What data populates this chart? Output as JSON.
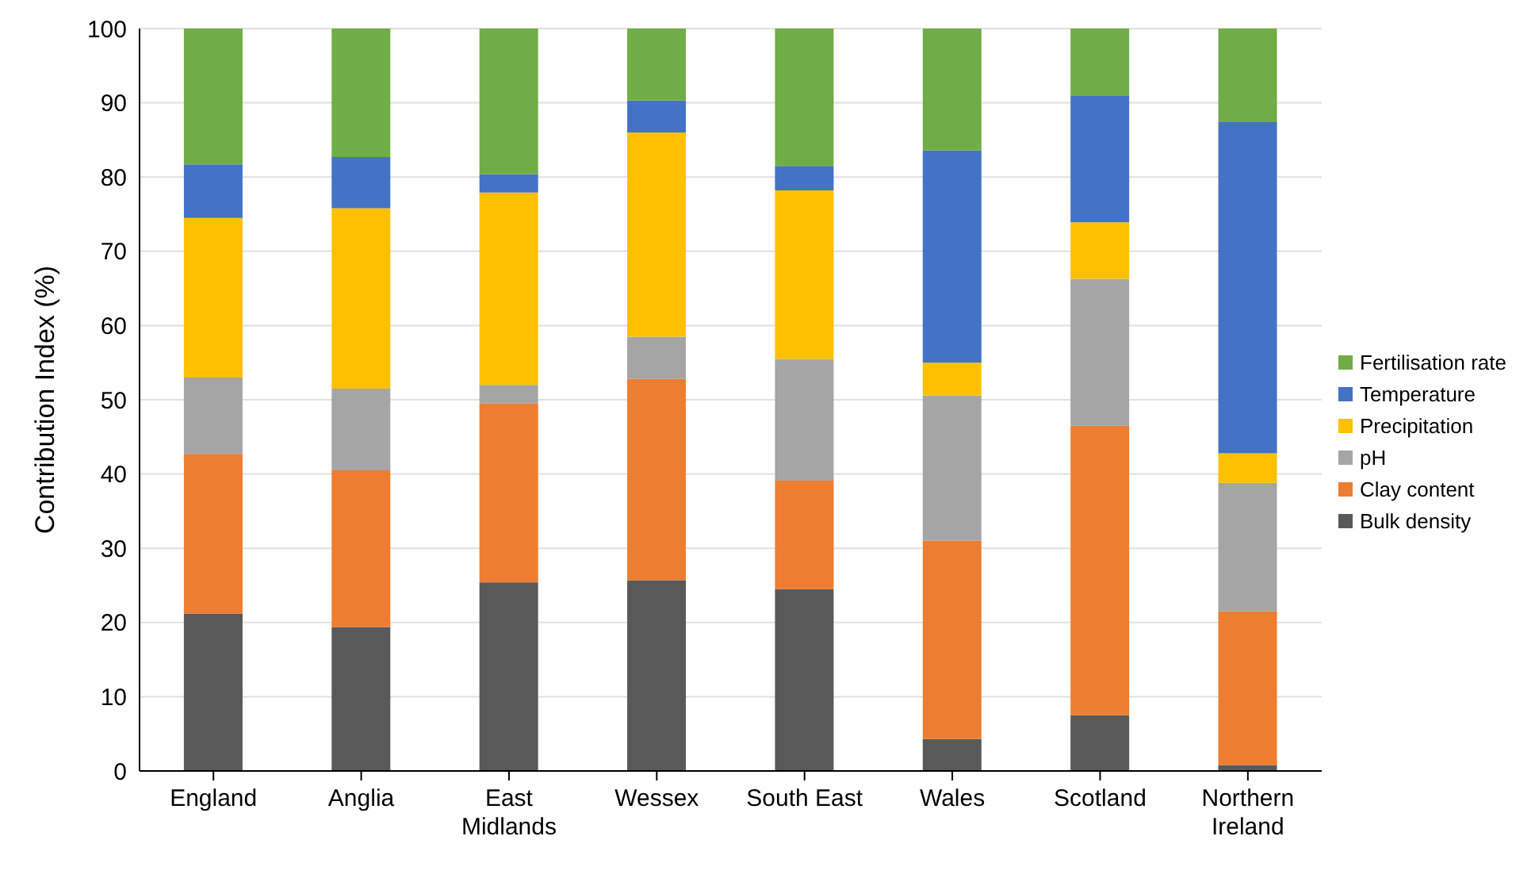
{
  "chart_data": {
    "type": "bar",
    "stacked": true,
    "ylabel": "Contribution Index (%)",
    "categories": [
      "England",
      "Anglia",
      "East Midlands",
      "Wessex",
      "South East",
      "Wales",
      "Scotland",
      "Northern Ireland"
    ],
    "series": [
      {
        "name": "Bulk density",
        "color": "#595959",
        "values": [
          21.2,
          19.4,
          25.4,
          25.7,
          24.5,
          4.3,
          7.5,
          0.8
        ]
      },
      {
        "name": "Clay content",
        "color": "#ed7d31",
        "values": [
          21.5,
          21.1,
          24.1,
          27.1,
          14.6,
          26.7,
          39.0,
          20.7
        ]
      },
      {
        "name": "pH",
        "color": "#a5a5a5",
        "values": [
          10.3,
          11.0,
          2.5,
          5.7,
          16.4,
          19.6,
          19.8,
          17.3
        ]
      },
      {
        "name": "Precipitation",
        "color": "#ffc000",
        "values": [
          21.5,
          24.3,
          25.9,
          27.5,
          22.7,
          4.4,
          7.6,
          4.0
        ]
      },
      {
        "name": "Temperature",
        "color": "#4472c4",
        "values": [
          7.2,
          6.9,
          2.5,
          4.3,
          3.3,
          28.6,
          17.1,
          44.6
        ]
      },
      {
        "name": "Fertilisation rate",
        "color": "#70ad47",
        "values": [
          18.3,
          17.3,
          19.6,
          9.7,
          18.5,
          16.4,
          9.0,
          12.6
        ]
      }
    ],
    "ylim": [
      0,
      100
    ],
    "yticks": [
      0,
      10,
      20,
      30,
      40,
      50,
      60,
      70,
      80,
      90,
      100
    ],
    "grid": "y",
    "legend": "right"
  }
}
